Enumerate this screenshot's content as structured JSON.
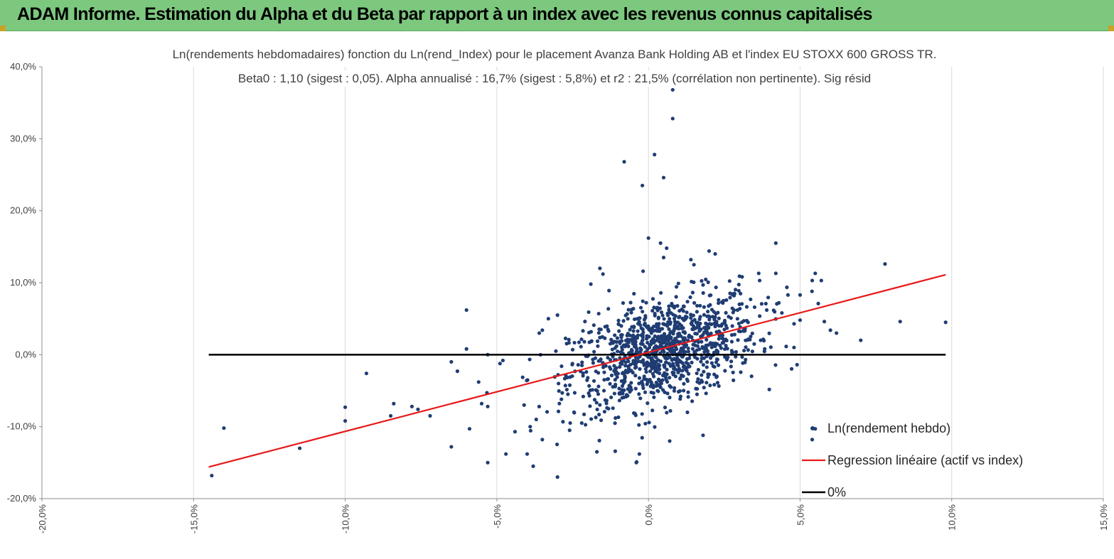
{
  "header": {
    "title": "ADAM Informe. Estimation du Alpha et du Beta par rapport à un index avec les revenus connus capitalisés"
  },
  "colors": {
    "header_bg": "#7dc87f",
    "points": "#1f3d73",
    "regression": "#e8191a",
    "zero_line": "#000000",
    "grid": "#d9d9d9"
  },
  "chart_data": {
    "type": "scatter",
    "title": [
      "Ln(rendements hebdomadaires) fonction du Ln(rend_Index) pour le placement Avanza Bank Holding AB et l'index EU STOXX 600 GROSS TR.",
      "Beta0 : 1,10 (sigest : 0,05). Alpha annualisé : 16,7% (sigest : 5,8%) et r2 : 21,5% (corrélation non pertinente). Sig résid"
    ],
    "xlim": [
      -20,
      15
    ],
    "ylim": [
      -20,
      40
    ],
    "x_ticks": [
      -20,
      -15,
      -10,
      -5,
      0,
      5,
      10,
      15
    ],
    "y_ticks": [
      -20,
      -10,
      0,
      10,
      20,
      30,
      40
    ],
    "x_tick_labels": [
      "-20,0%",
      "-15,0%",
      "-10,0%",
      "-5,0%",
      "0,0%",
      "5,0%",
      "10,0%",
      "15,0%"
    ],
    "y_tick_labels": [
      "-20,0%",
      "-10,0%",
      "0,0%",
      "10,0%",
      "20,0%",
      "30,0%",
      "40,0%"
    ],
    "grid": "vertical",
    "legend_position": "bottom-right",
    "series": [
      {
        "name": "Ln(rendement hebdo)",
        "kind": "scatter",
        "cluster": {
          "count": 1100,
          "center": [
            0.5,
            0.5
          ],
          "approx": true
        },
        "points": [
          [
            -14.4,
            -16.8
          ],
          [
            -14.0,
            -10.2
          ],
          [
            -11.5,
            -13.0
          ],
          [
            -10.0,
            -7.3
          ],
          [
            -10.0,
            -9.2
          ],
          [
            -9.3,
            -2.6
          ],
          [
            -8.5,
            -8.5
          ],
          [
            -8.4,
            -6.8
          ],
          [
            -7.8,
            -7.2
          ],
          [
            -7.6,
            -7.6
          ],
          [
            -7.2,
            -8.5
          ],
          [
            -6.5,
            -12.8
          ],
          [
            -6.5,
            -1.0
          ],
          [
            -6.3,
            -2.3
          ],
          [
            -6.0,
            6.2
          ],
          [
            -6.0,
            0.8
          ],
          [
            -5.9,
            -10.3
          ],
          [
            -5.6,
            -3.8
          ],
          [
            -5.5,
            -6.8
          ],
          [
            -5.3,
            -7.2
          ],
          [
            -5.3,
            -15.0
          ],
          [
            -5.3,
            0.0
          ],
          [
            -4.8,
            -0.8
          ],
          [
            -4.7,
            -13.8
          ],
          [
            -4.4,
            -10.7
          ],
          [
            -4.1,
            -7.0
          ],
          [
            -4.0,
            -13.8
          ],
          [
            -3.9,
            -10.0
          ],
          [
            -3.8,
            -15.5
          ],
          [
            -3.7,
            -9.0
          ],
          [
            -3.5,
            -11.8
          ],
          [
            -3.6,
            3.0
          ],
          [
            -3.5,
            3.4
          ],
          [
            -3.3,
            5.0
          ],
          [
            -3.0,
            -17.0
          ],
          [
            -3.0,
            5.5
          ],
          [
            -2.6,
            -10.5
          ],
          [
            -2.2,
            -9.5
          ],
          [
            -1.9,
            9.8
          ],
          [
            -1.7,
            -13.5
          ],
          [
            -1.6,
            12.0
          ],
          [
            -1.5,
            11.2
          ],
          [
            -1.3,
            8.9
          ],
          [
            -0.8,
            26.8
          ],
          [
            -0.4,
            -15.0
          ],
          [
            -0.2,
            23.5
          ],
          [
            0.0,
            16.2
          ],
          [
            0.2,
            27.8
          ],
          [
            0.4,
            15.5
          ],
          [
            0.5,
            24.6
          ],
          [
            0.8,
            32.8
          ],
          [
            0.8,
            36.8
          ],
          [
            0.5,
            13.5
          ],
          [
            0.6,
            14.8
          ],
          [
            1.4,
            13.2
          ],
          [
            1.5,
            12.5
          ],
          [
            2.0,
            14.4
          ],
          [
            2.2,
            14.0
          ],
          [
            3.0,
            10.9
          ],
          [
            4.2,
            15.5
          ],
          [
            4.2,
            11.3
          ],
          [
            3.9,
            6.2
          ],
          [
            4.3,
            7.2
          ],
          [
            4.4,
            5.8
          ],
          [
            4.6,
            8.3
          ],
          [
            5.0,
            8.3
          ],
          [
            5.4,
            10.3
          ],
          [
            5.5,
            11.3
          ],
          [
            5.7,
            10.3
          ],
          [
            5.6,
            7.1
          ],
          [
            5.8,
            4.6
          ],
          [
            6.0,
            3.4
          ],
          [
            6.2,
            3.0
          ],
          [
            7.0,
            2.0
          ],
          [
            7.8,
            12.6
          ],
          [
            8.3,
            4.6
          ],
          [
            9.8,
            4.5
          ],
          [
            5.0,
            4.8
          ],
          [
            4.9,
            -1.4
          ],
          [
            4.8,
            1.0
          ],
          [
            5.4,
            -11.8
          ],
          [
            5.5,
            -10.3
          ],
          [
            1.8,
            -11.2
          ],
          [
            -1.8,
            4.1
          ],
          [
            -2.5,
            0.7
          ],
          [
            3.5,
            6.6
          ],
          [
            3.7,
            2.0
          ],
          [
            3.4,
            -3.0
          ],
          [
            -0.3,
            -13.8
          ],
          [
            0.7,
            -12.0
          ]
        ]
      },
      {
        "name": "Regression linéaire (actif vs index)",
        "kind": "line",
        "x": [
          -14.5,
          9.8
        ],
        "y": [
          -15.6,
          11.1
        ]
      },
      {
        "name": "0%",
        "kind": "line",
        "x": [
          -14.5,
          9.8
        ],
        "y": [
          0,
          0
        ]
      }
    ]
  }
}
